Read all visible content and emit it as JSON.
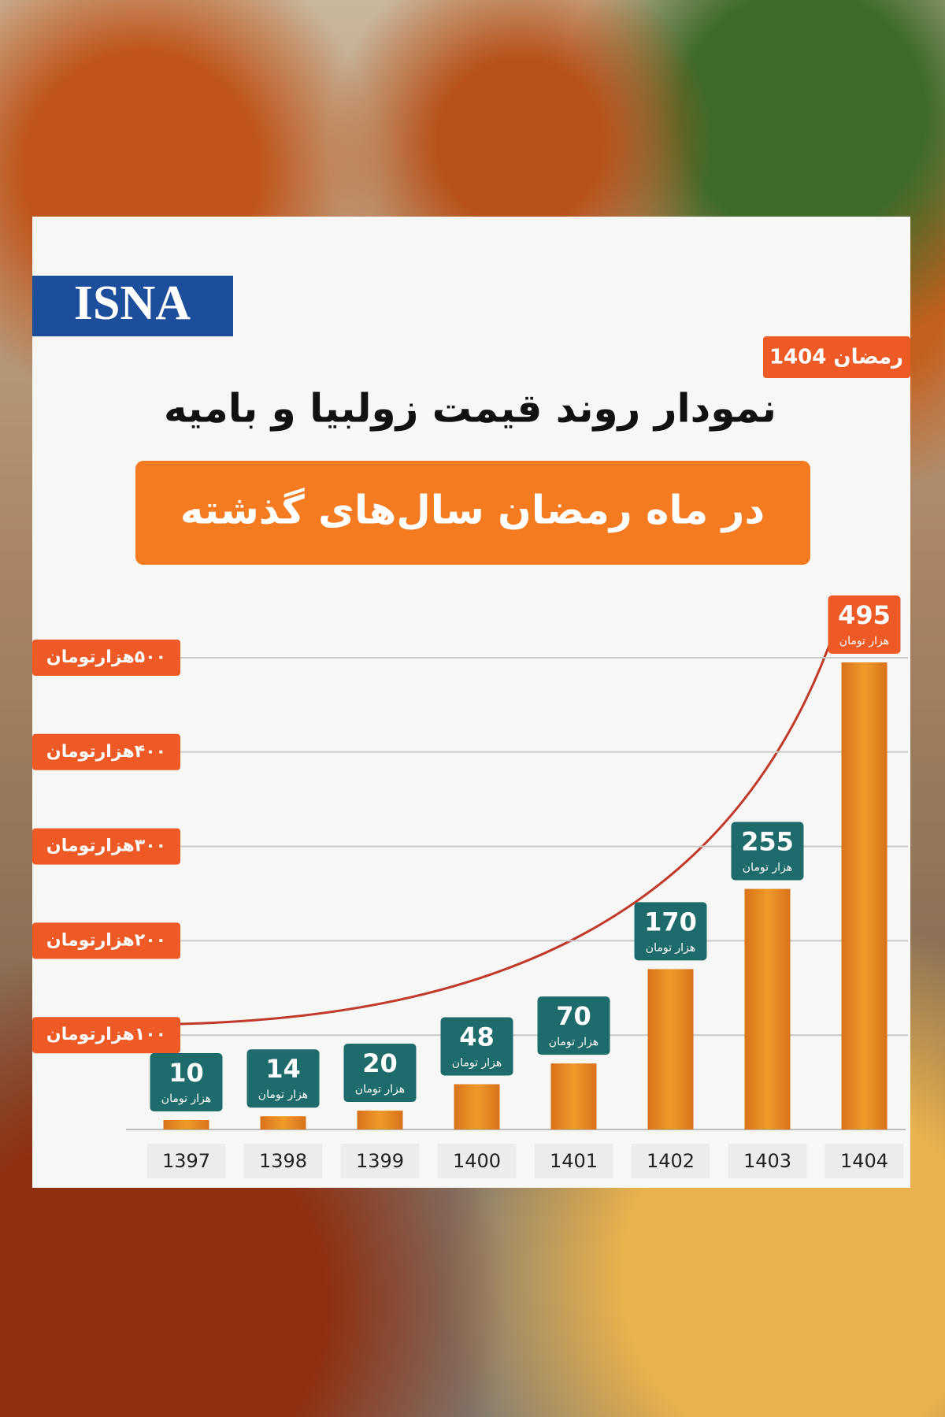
{
  "brand": "ISNA",
  "badge": "رمضان 1404",
  "chart_data": {
    "type": "bar",
    "title": "نمودار روند قیمت زولبیا و بامیه",
    "subtitle": "در ماه رمضان سال‌های گذشته",
    "categories": [
      "1397",
      "1398",
      "1399",
      "1400",
      "1401",
      "1402",
      "1403",
      "1404"
    ],
    "values": [
      10,
      14,
      20,
      48,
      70,
      170,
      255,
      495
    ],
    "value_unit": "هزار تومان",
    "color": "#e8861c",
    "ylim": [
      0,
      500
    ],
    "yticks": [
      {
        "value": 100,
        "label": "۱۰۰هزارتومان"
      },
      {
        "value": 200,
        "label": "۲۰۰هزارتومان"
      },
      {
        "value": 300,
        "label": "۳۰۰هزارتومان"
      },
      {
        "value": 400,
        "label": "۴۰۰هزارتومان"
      },
      {
        "value": 500,
        "label": "۵۰۰هزارتومان"
      }
    ],
    "grid": true
  }
}
